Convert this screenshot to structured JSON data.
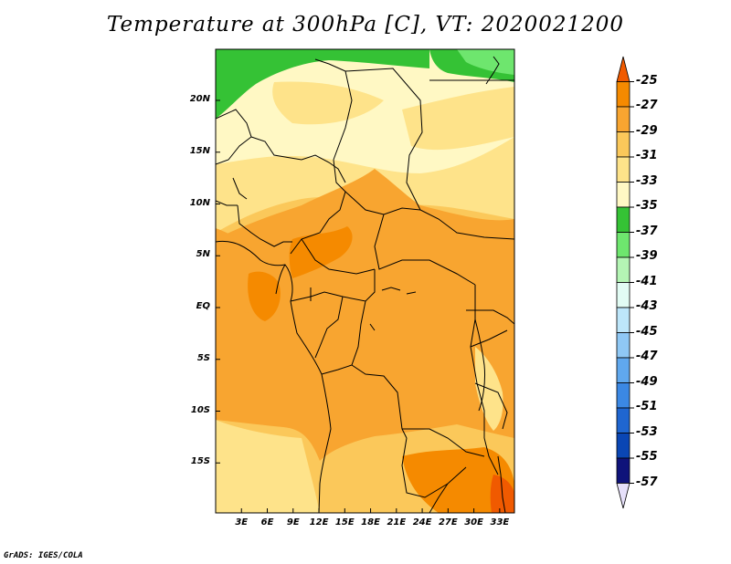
{
  "title": "Temperature at 300hPa [C], VT: 2020021200",
  "credit": "GrADS: IGES/COLA",
  "lat_labels": [
    {
      "text": "20N",
      "lat": 20
    },
    {
      "text": "15N",
      "lat": 15
    },
    {
      "text": "10N",
      "lat": 10
    },
    {
      "text": "5N",
      "lat": 5
    },
    {
      "text": "EQ",
      "lat": 0
    },
    {
      "text": "5S",
      "lat": -5
    },
    {
      "text": "10S",
      "lat": -10
    },
    {
      "text": "15S",
      "lat": -15
    }
  ],
  "lon_labels": [
    {
      "text": "3E",
      "lon": 3
    },
    {
      "text": "6E",
      "lon": 6
    },
    {
      "text": "9E",
      "lon": 9
    },
    {
      "text": "12E",
      "lon": 12
    },
    {
      "text": "15E",
      "lon": 15
    },
    {
      "text": "18E",
      "lon": 18
    },
    {
      "text": "21E",
      "lon": 21
    },
    {
      "text": "24E",
      "lon": 24
    },
    {
      "text": "27E",
      "lon": 27
    },
    {
      "text": "30E",
      "lon": 30
    },
    {
      "text": "33E",
      "lon": 33
    }
  ],
  "colorbar": {
    "levels": [
      "-25",
      "-27",
      "-29",
      "-31",
      "-33",
      "-35",
      "-37",
      "-39",
      "-41",
      "-43",
      "-45",
      "-47",
      "-49",
      "-51",
      "-53",
      "-55",
      "-57"
    ],
    "colors": [
      "#f05a00",
      "#f58a00",
      "#f8a530",
      "#fbc85a",
      "#fee38a",
      "#fff8c4",
      "#35c235",
      "#6ee66e",
      "#b4f5b4",
      "#e2fcf4",
      "#bde6fa",
      "#8fc8f5",
      "#60a8ee",
      "#3b88e4",
      "#1f66d0",
      "#0a46b4",
      "#0f137a",
      "#e6e0fa"
    ]
  },
  "colors": {
    "ocean_south": "#fee38a",
    "land_base": "#fbc85a",
    "sahara": "#fff8c4",
    "sahel": "#fee38a",
    "warm_core": "#f8a530",
    "hot_south": "#f58a00",
    "hottest": "#f05a00",
    "cold_north": "#35c235",
    "cold_ne": "#6ee66e",
    "boundary": "#000000"
  }
}
